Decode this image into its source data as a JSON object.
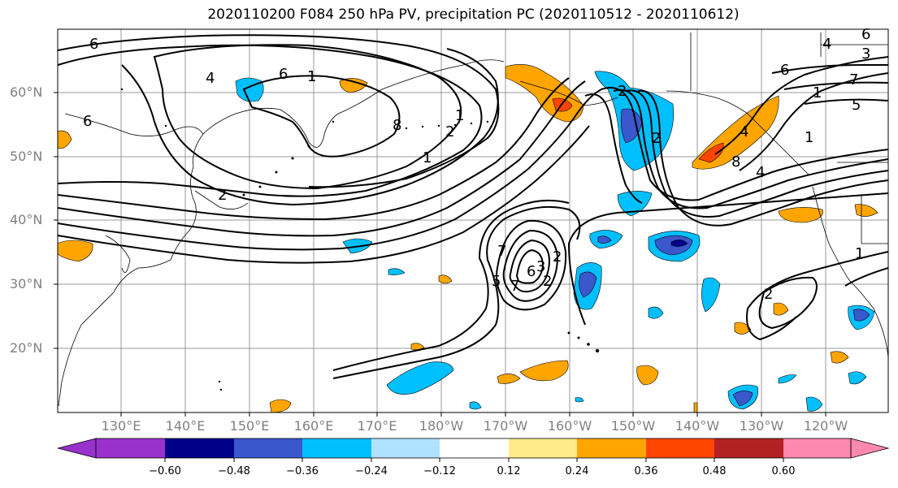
{
  "title": "2020110200 F084 250 hPa PV, precipitation PC (2020110512 - 2020110612)",
  "lat_labels": [
    "60°N",
    "50°N",
    "40°N",
    "30°N",
    "20°N"
  ],
  "lon_labels": [
    "130°E",
    "140°E",
    "150°E",
    "160°E",
    "170°E",
    "180°W",
    "170°W",
    "160°W",
    "150°W",
    "140°W",
    "130°W",
    "120°W"
  ],
  "contour_labels": [
    "6",
    "4",
    "6",
    "1",
    "8",
    "2",
    "6",
    "1",
    "8",
    "4",
    "1",
    "6",
    "2",
    "4",
    "6",
    "7",
    "5",
    "3",
    "1",
    "7",
    "2",
    "7",
    "2",
    "6",
    "5",
    "3",
    "2",
    "1",
    "1",
    "4",
    "2",
    "2"
  ],
  "colorbar": {
    "ticks": [
      "−0.60",
      "−0.48",
      "−0.36",
      "−0.24",
      "−0.12",
      "0.12",
      "0.24",
      "0.36",
      "0.48",
      "0.60"
    ],
    "colors": [
      "#9932cc",
      "#00008b",
      "#3a57cc",
      "#00bfff",
      "#b0e2ff",
      "#ffffff",
      "#ffeb8a",
      "#ffa500",
      "#ff4500",
      "#b22222",
      "#ff88b0"
    ]
  }
}
